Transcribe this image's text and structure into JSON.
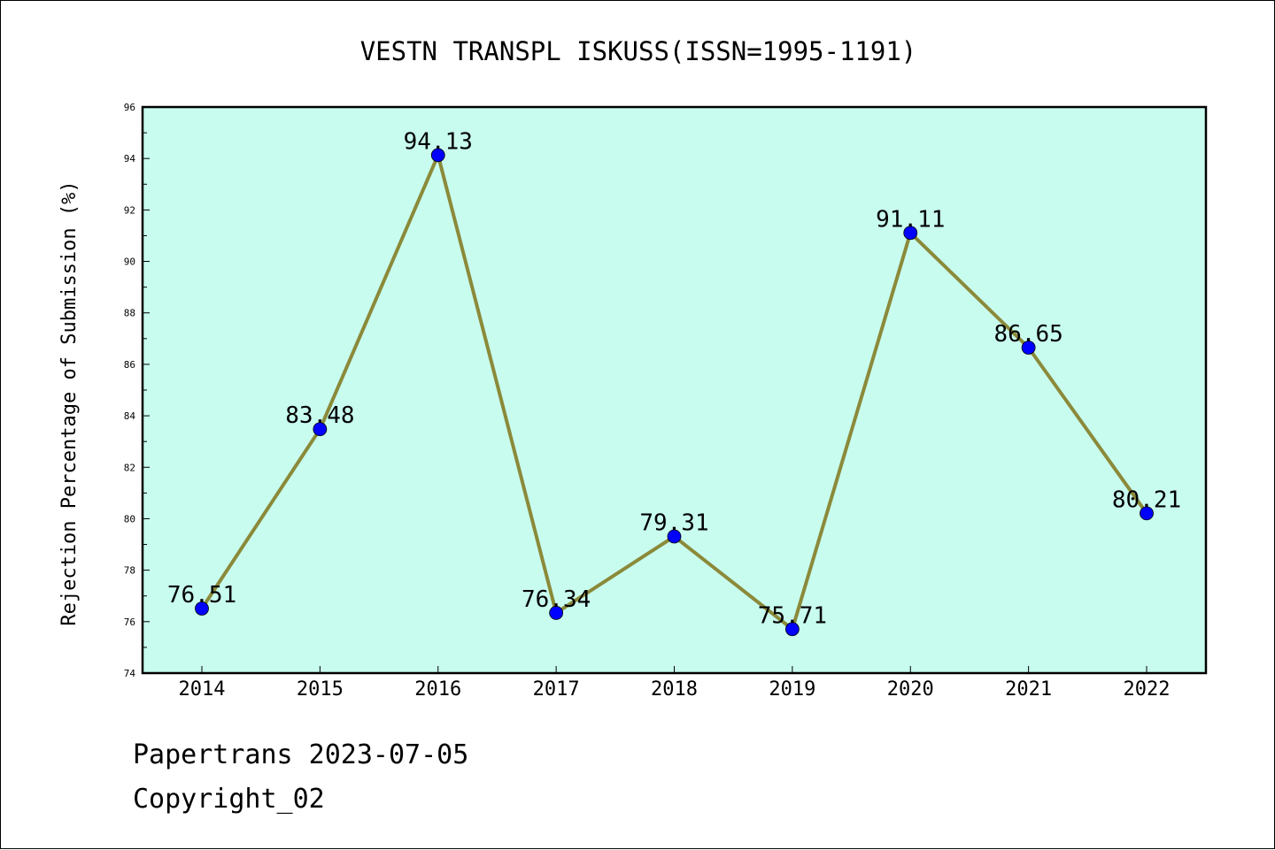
{
  "footer": {
    "line1": "Papertrans 2023-07-05",
    "line2": "Copyright_02"
  },
  "chart_data": {
    "type": "line",
    "title": "VESTN TRANSPL ISKUSS(ISSN=1995-1191)",
    "xlabel": "",
    "ylabel": "Rejection Percentage of Submission (%)",
    "categories": [
      "2014",
      "2015",
      "2016",
      "2017",
      "2018",
      "2019",
      "2020",
      "2021",
      "2022"
    ],
    "series": [
      {
        "values": [
          76.51,
          83.48,
          94.13,
          76.34,
          79.31,
          75.71,
          91.11,
          86.65,
          80.21
        ],
        "labels": [
          "76.51",
          "83.48",
          "94.13",
          "76.34",
          "79.31",
          "75.71",
          "91.11",
          "86.65",
          "80.21"
        ],
        "line_color": "#8b8a3a",
        "marker_color": "#0000ff"
      }
    ],
    "ylim": [
      74,
      96
    ],
    "yticks": [
      "74",
      "76",
      "78",
      "80",
      "82",
      "84",
      "86",
      "88",
      "90",
      "92",
      "94",
      "96"
    ],
    "plot_background": "#c8fcef",
    "grid": false,
    "legend": "none"
  }
}
